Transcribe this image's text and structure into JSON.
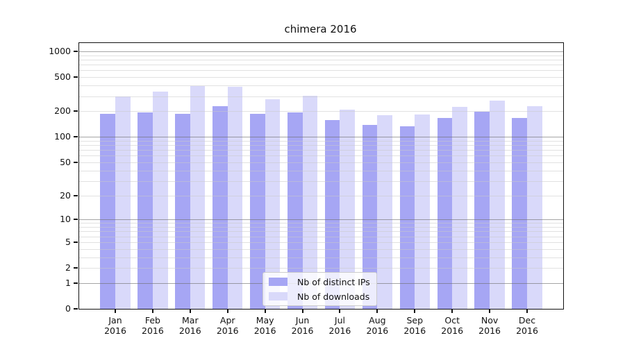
{
  "chart_data": {
    "type": "bar",
    "title": "chimera 2016",
    "categories": [
      "Jan",
      "Feb",
      "Mar",
      "Apr",
      "May",
      "Jun",
      "Jul",
      "Aug",
      "Sep",
      "Oct",
      "Nov",
      "Dec"
    ],
    "year_label": "2016",
    "series": [
      {
        "name": "Nb of distinct IPs",
        "color": "#a6a6f4",
        "values": [
          185,
          192,
          186,
          228,
          188,
          192,
          158,
          138,
          133,
          166,
          197,
          166
        ]
      },
      {
        "name": "Nb of downloads",
        "color": "#d9d9fa",
        "values": [
          300,
          338,
          395,
          388,
          276,
          302,
          209,
          178,
          182,
          223,
          264,
          231
        ]
      }
    ],
    "yscale": "log1p",
    "ylim": [
      0,
      1252
    ],
    "ytick_labels": [
      "1000",
      "500",
      "200",
      "100",
      "50",
      "20",
      "10",
      "5",
      "2",
      "1",
      "0"
    ],
    "ytick_values": [
      1000,
      500,
      200,
      100,
      50,
      20,
      10,
      5,
      2,
      1,
      0
    ],
    "major_gridlines": [
      1,
      10,
      100,
      1000
    ],
    "minor_gridlines": [
      2,
      3,
      4,
      5,
      6,
      7,
      8,
      9,
      20,
      30,
      40,
      50,
      60,
      70,
      80,
      90,
      200,
      300,
      400,
      500,
      600,
      700,
      800,
      900
    ],
    "grid": true,
    "legend_position": "lower center",
    "xlabel": "",
    "ylabel": ""
  }
}
